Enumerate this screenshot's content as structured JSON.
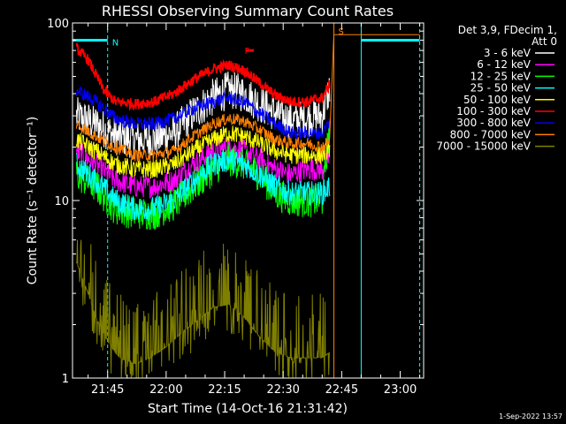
{
  "chart_data": {
    "type": "line",
    "title": "RHESSI Observing Summary Count Rates",
    "xlabel": "Start Time (14-Oct-16 21:31:42)",
    "ylabel": "Count Rate (s⁻¹ detector⁻¹)",
    "x_unit": "minutes after 21:30 UT",
    "xlim": [
      6,
      96
    ],
    "ylim": [
      1,
      100
    ],
    "yscale": "log",
    "x_ticks": [
      {
        "x": 15,
        "label": "21:45"
      },
      {
        "x": 30,
        "label": "22:00"
      },
      {
        "x": 45,
        "label": "22:15"
      },
      {
        "x": 60,
        "label": "22:30"
      },
      {
        "x": 75,
        "label": "22:45"
      },
      {
        "x": 90,
        "label": "23:00"
      }
    ],
    "y_ticks": [
      {
        "y": 1,
        "label": "1"
      },
      {
        "y": 10,
        "label": "10"
      },
      {
        "y": 100,
        "label": "100"
      }
    ],
    "legend_header": [
      "Det 3,9, FDecim 1,",
      "Att 0"
    ],
    "legend_placement": "right",
    "series": [
      {
        "name": "3 - 6 keV",
        "color": "#ffffff",
        "points": [
          [
            7,
            30
          ],
          [
            12,
            27
          ],
          [
            17,
            23
          ],
          [
            22,
            22
          ],
          [
            27,
            22
          ],
          [
            32,
            24
          ],
          [
            37,
            31
          ],
          [
            42,
            38
          ],
          [
            46,
            42
          ],
          [
            50,
            40
          ],
          [
            54,
            35
          ],
          [
            58,
            31
          ],
          [
            62,
            28
          ],
          [
            66,
            29
          ],
          [
            70,
            30
          ],
          [
            72,
            44
          ]
        ]
      },
      {
        "name": "6 - 12 keV",
        "color": "#ff00ff",
        "points": [
          [
            7,
            19
          ],
          [
            12,
            16
          ],
          [
            17,
            13
          ],
          [
            22,
            12
          ],
          [
            27,
            12
          ],
          [
            32,
            13
          ],
          [
            37,
            16
          ],
          [
            42,
            19
          ],
          [
            46,
            20
          ],
          [
            50,
            19
          ],
          [
            54,
            17
          ],
          [
            58,
            15
          ],
          [
            62,
            14
          ],
          [
            66,
            15
          ],
          [
            70,
            15
          ],
          [
            72,
            18
          ]
        ]
      },
      {
        "name": "12 - 25 keV",
        "color": "#00ff00",
        "points": [
          [
            7,
            14
          ],
          [
            12,
            12
          ],
          [
            17,
            9
          ],
          [
            22,
            8.5
          ],
          [
            27,
            8.5
          ],
          [
            32,
            9.5
          ],
          [
            37,
            12
          ],
          [
            42,
            15
          ],
          [
            46,
            17
          ],
          [
            50,
            16
          ],
          [
            54,
            14
          ],
          [
            58,
            11
          ],
          [
            62,
            10
          ],
          [
            66,
            10
          ],
          [
            70,
            10
          ],
          [
            72,
            28
          ]
        ]
      },
      {
        "name": "25 - 50 keV",
        "color": "#00ffff",
        "points": [
          [
            7,
            16
          ],
          [
            12,
            13
          ],
          [
            17,
            10
          ],
          [
            22,
            9
          ],
          [
            27,
            9
          ],
          [
            32,
            10
          ],
          [
            37,
            13
          ],
          [
            42,
            16
          ],
          [
            46,
            17
          ],
          [
            50,
            16
          ],
          [
            54,
            14
          ],
          [
            58,
            12
          ],
          [
            62,
            11
          ],
          [
            66,
            11
          ],
          [
            70,
            11
          ],
          [
            72,
            12
          ]
        ]
      },
      {
        "name": "50 - 100 keV",
        "color": "#ffff00",
        "points": [
          [
            7,
            22
          ],
          [
            12,
            19
          ],
          [
            17,
            16
          ],
          [
            22,
            15
          ],
          [
            27,
            15
          ],
          [
            32,
            16
          ],
          [
            37,
            19
          ],
          [
            42,
            22
          ],
          [
            46,
            24
          ],
          [
            50,
            23
          ],
          [
            54,
            21
          ],
          [
            58,
            19
          ],
          [
            62,
            18
          ],
          [
            66,
            18
          ],
          [
            70,
            18
          ],
          [
            72,
            20
          ]
        ]
      },
      {
        "name": "100 - 300 keV",
        "color": "#ff0000",
        "points": [
          [
            7,
            72
          ],
          [
            10,
            62
          ],
          [
            14,
            42
          ],
          [
            17,
            36
          ],
          [
            22,
            35
          ],
          [
            27,
            36
          ],
          [
            32,
            40
          ],
          [
            37,
            48
          ],
          [
            42,
            55
          ],
          [
            46,
            58
          ],
          [
            50,
            54
          ],
          [
            54,
            46
          ],
          [
            58,
            39
          ],
          [
            62,
            36
          ],
          [
            66,
            36
          ],
          [
            70,
            38
          ],
          [
            72,
            45
          ]
        ]
      },
      {
        "name": "300 - 800 keV",
        "color": "#0000ff",
        "points": [
          [
            7,
            42
          ],
          [
            12,
            36
          ],
          [
            17,
            29
          ],
          [
            22,
            27
          ],
          [
            27,
            27
          ],
          [
            32,
            29
          ],
          [
            37,
            33
          ],
          [
            42,
            36
          ],
          [
            46,
            38
          ],
          [
            50,
            36
          ],
          [
            54,
            31
          ],
          [
            58,
            27
          ],
          [
            62,
            24
          ],
          [
            66,
            24
          ],
          [
            70,
            24
          ],
          [
            72,
            28
          ]
        ]
      },
      {
        "name": "800 - 7000 keV",
        "color": "#ff8000",
        "points": [
          [
            7,
            27
          ],
          [
            12,
            23
          ],
          [
            17,
            20
          ],
          [
            22,
            18
          ],
          [
            27,
            18
          ],
          [
            32,
            19
          ],
          [
            37,
            23
          ],
          [
            42,
            27
          ],
          [
            46,
            29
          ],
          [
            50,
            28
          ],
          [
            54,
            25
          ],
          [
            58,
            22
          ],
          [
            62,
            21
          ],
          [
            66,
            21
          ],
          [
            70,
            20
          ],
          [
            72,
            22
          ],
          [
            73,
            86
          ],
          [
            80,
            86
          ],
          [
            95,
            86
          ]
        ]
      },
      {
        "name": "7000 - 15000 keV",
        "color": "#808000",
        "points": [
          [
            7,
            4.5
          ],
          [
            10,
            3
          ],
          [
            12,
            2.2
          ],
          [
            15,
            1.6
          ],
          [
            18,
            1.3
          ],
          [
            22,
            1.2
          ],
          [
            26,
            1.3
          ],
          [
            30,
            1.5
          ],
          [
            34,
            1.8
          ],
          [
            38,
            2.1
          ],
          [
            42,
            2.5
          ],
          [
            46,
            2.6
          ],
          [
            50,
            2.2
          ],
          [
            54,
            1.7
          ],
          [
            58,
            1.4
          ],
          [
            62,
            1.3
          ],
          [
            66,
            1.3
          ],
          [
            70,
            1.3
          ],
          [
            72,
            1.4
          ]
        ]
      }
    ],
    "annotations": [
      {
        "label": "N",
        "color": "#00ffff",
        "x": 15,
        "y": 78
      },
      {
        "label": "F",
        "color": "#ff0000",
        "x": 49,
        "y": 70
      },
      {
        "label": "S",
        "color": "#ff8000",
        "x": 73,
        "y": 90
      }
    ],
    "night_intervals": [
      [
        6,
        15
      ],
      [
        80,
        95
      ]
    ],
    "night_color": "#00ffff",
    "saa_color": "#ff8000",
    "timestamp": "1-Sep-2022 13:57"
  }
}
